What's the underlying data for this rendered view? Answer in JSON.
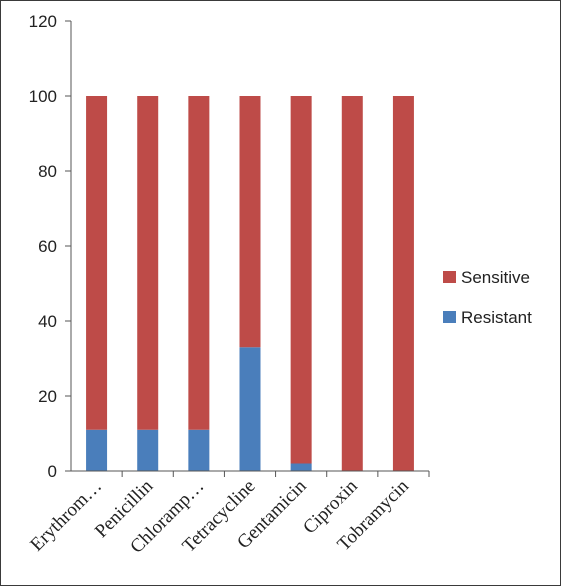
{
  "chart_data": {
    "type": "bar",
    "stacked": true,
    "categories": [
      "Erythrom…",
      "Penicillin",
      "Chloramp…",
      "Tetracycline",
      "Gentamicin",
      "Ciproxin",
      "Tobramycin"
    ],
    "series": [
      {
        "name": "Resistant",
        "color": "#4a7ebb",
        "values": [
          11,
          11,
          11,
          33,
          2,
          0,
          0
        ]
      },
      {
        "name": "Sensitive",
        "color": "#be4b48",
        "values": [
          89,
          89,
          89,
          67,
          98,
          100,
          100
        ]
      }
    ],
    "ylim": [
      0,
      120
    ],
    "yticks": [
      0,
      20,
      40,
      60,
      80,
      100,
      120
    ],
    "grid": false,
    "legend": {
      "position": "right",
      "order": [
        "Sensitive",
        "Resistant"
      ]
    },
    "title": "",
    "xlabel": "",
    "ylabel": ""
  }
}
